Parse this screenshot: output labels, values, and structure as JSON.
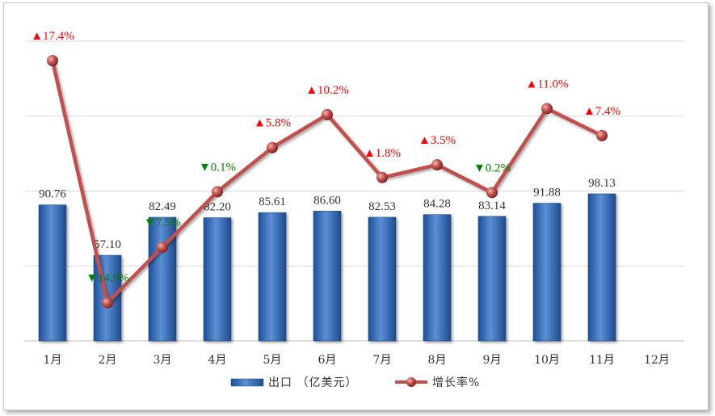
{
  "chart_data": {
    "type": "bar",
    "categories": [
      "1月",
      "2月",
      "3月",
      "4月",
      "5月",
      "6月",
      "7月",
      "8月",
      "9月",
      "10月",
      "11月",
      "12月"
    ],
    "series": [
      {
        "name": "出口 （亿美元）",
        "type": "bar",
        "values": [
          90.76,
          57.1,
          82.49,
          82.2,
          85.61,
          86.6,
          82.53,
          84.28,
          83.14,
          91.88,
          98.13,
          null
        ],
        "labels": [
          "90.76",
          "57.10",
          "82.49",
          "82.20",
          "85.61",
          "86.60",
          "82.53",
          "84.28",
          "83.14",
          "91.88",
          "98.13",
          ""
        ]
      },
      {
        "name": "增长率%",
        "type": "line",
        "values": [
          17.4,
          -14.9,
          -7.5,
          -0.1,
          5.8,
          10.2,
          1.8,
          3.5,
          -0.2,
          11.0,
          7.4,
          null
        ],
        "labels": [
          "▲17.4%",
          "▼14.9%",
          "▼7.5%",
          "▼0.1%",
          "▲5.8%",
          "▲10.2%",
          "▲1.8%",
          "▲3.5%",
          "▼0.2%",
          "▲11.0%",
          "▲7.4%",
          ""
        ]
      }
    ],
    "xlabel": "",
    "ylabel": "",
    "bar_ylim": [
      0,
      200
    ],
    "line_ylim": [
      -20,
      20
    ],
    "grid": true,
    "legend_position": "bottom"
  },
  "colors": {
    "bar": "#3a6fbf",
    "line": "#c0504d",
    "up": "#ff0000",
    "down": "#008000",
    "grid": "#d9d9d9"
  }
}
